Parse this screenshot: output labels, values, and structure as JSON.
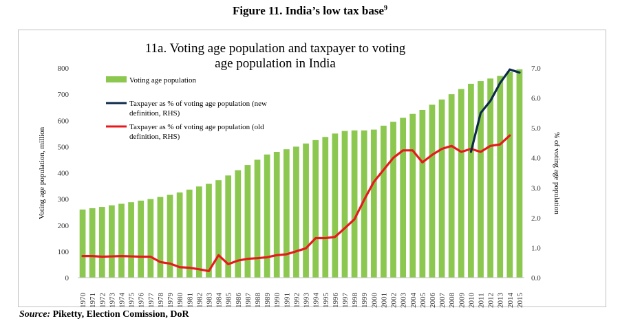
{
  "figure": {
    "title": "Figure 11. India’s low tax base",
    "title_note": "9",
    "source_label": "Source:",
    "source_text": " Piketty, Election Comission, DoR"
  },
  "chart_data": {
    "type": "bar",
    "title_line1": "11a. Voting age population and taxpayer to voting",
    "title_line2": "age population in India",
    "ylabel": "Voting age population, million",
    "y2label": "% of voting age population",
    "ylim": [
      0,
      800
    ],
    "y2lim": [
      0,
      7
    ],
    "y_ticks": [
      "800",
      "700",
      "600",
      "500",
      "400",
      "300",
      "200",
      "100",
      "0"
    ],
    "y2_ticks": [
      "7.0",
      "6.0",
      "5.0",
      "4.0",
      "3.0",
      "2.0",
      "1.0",
      "0.0"
    ],
    "legend_position": "top-left",
    "colors": {
      "bars": "#8cc850",
      "new_def": "#0d2a4d",
      "old_def": "#e8191c",
      "grid": "#d9d9d9"
    },
    "categories": [
      "1970",
      "1971",
      "1972",
      "1973",
      "1974",
      "1975",
      "1976",
      "1977",
      "1978",
      "1979",
      "1980",
      "1981",
      "1982",
      "1983",
      "1984",
      "1985",
      "1986",
      "1987",
      "1988",
      "1989",
      "1990",
      "1991",
      "1992",
      "1993",
      "1994",
      "1995",
      "1996",
      "1997",
      "1998",
      "1999",
      "2000",
      "2001",
      "2002",
      "2003",
      "2004",
      "2005",
      "2006",
      "2007",
      "2008",
      "2009",
      "2010",
      "2011",
      "2012",
      "2013",
      "2014",
      "2015"
    ],
    "series": [
      {
        "name": "Voting age population",
        "type": "bar",
        "axis": "left",
        "values": [
          260,
          265,
          270,
          276,
          282,
          288,
          294,
          300,
          308,
          316,
          325,
          336,
          348,
          358,
          372,
          390,
          410,
          430,
          450,
          470,
          480,
          490,
          500,
          512,
          525,
          537,
          550,
          560,
          562,
          562,
          565,
          580,
          595,
          610,
          625,
          640,
          660,
          680,
          700,
          720,
          740,
          750,
          760,
          770,
          785,
          795
        ]
      },
      {
        "name": "Taxpayer as % of voting age population (new definition, RHS)",
        "type": "line",
        "axis": "right",
        "x": [
          "2010",
          "2011",
          "2012",
          "2013",
          "2014",
          "2015"
        ],
        "values": [
          4.2,
          5.5,
          5.9,
          6.5,
          6.95,
          6.85
        ]
      },
      {
        "name": "Taxpayer as % of voting age population (old definition, RHS)",
        "type": "line",
        "axis": "right",
        "x": [
          "1970",
          "1971",
          "1972",
          "1973",
          "1974",
          "1975",
          "1976",
          "1977",
          "1978",
          "1979",
          "1980",
          "1981",
          "1982",
          "1983",
          "1984",
          "1985",
          "1986",
          "1987",
          "1988",
          "1989",
          "1990",
          "1991",
          "1992",
          "1993",
          "1994",
          "1995",
          "1996",
          "1997",
          "1998",
          "1999",
          "2000",
          "2001",
          "2002",
          "2003",
          "2004",
          "2005",
          "2006",
          "2007",
          "2008",
          "2009",
          "2010",
          "2011",
          "2012",
          "2013",
          "2014"
        ],
        "values": [
          0.72,
          0.72,
          0.7,
          0.71,
          0.72,
          0.71,
          0.7,
          0.7,
          0.52,
          0.47,
          0.35,
          0.33,
          0.28,
          0.22,
          0.75,
          0.45,
          0.57,
          0.63,
          0.65,
          0.68,
          0.75,
          0.78,
          0.88,
          0.98,
          1.32,
          1.32,
          1.36,
          1.65,
          1.95,
          2.6,
          3.2,
          3.6,
          4.0,
          4.25,
          4.25,
          3.85,
          4.1,
          4.3,
          4.4,
          4.2,
          4.3,
          4.2,
          4.4,
          4.45,
          4.75
        ]
      }
    ],
    "legend": [
      {
        "label_line1": "Voting age population",
        "label_line2": ""
      },
      {
        "label_line1": "Taxpayer as % of voting age population (new",
        "label_line2": "definition, RHS)"
      },
      {
        "label_line1": "Taxpayer as % of voting age population (old",
        "label_line2": "definition, RHS)"
      }
    ]
  }
}
